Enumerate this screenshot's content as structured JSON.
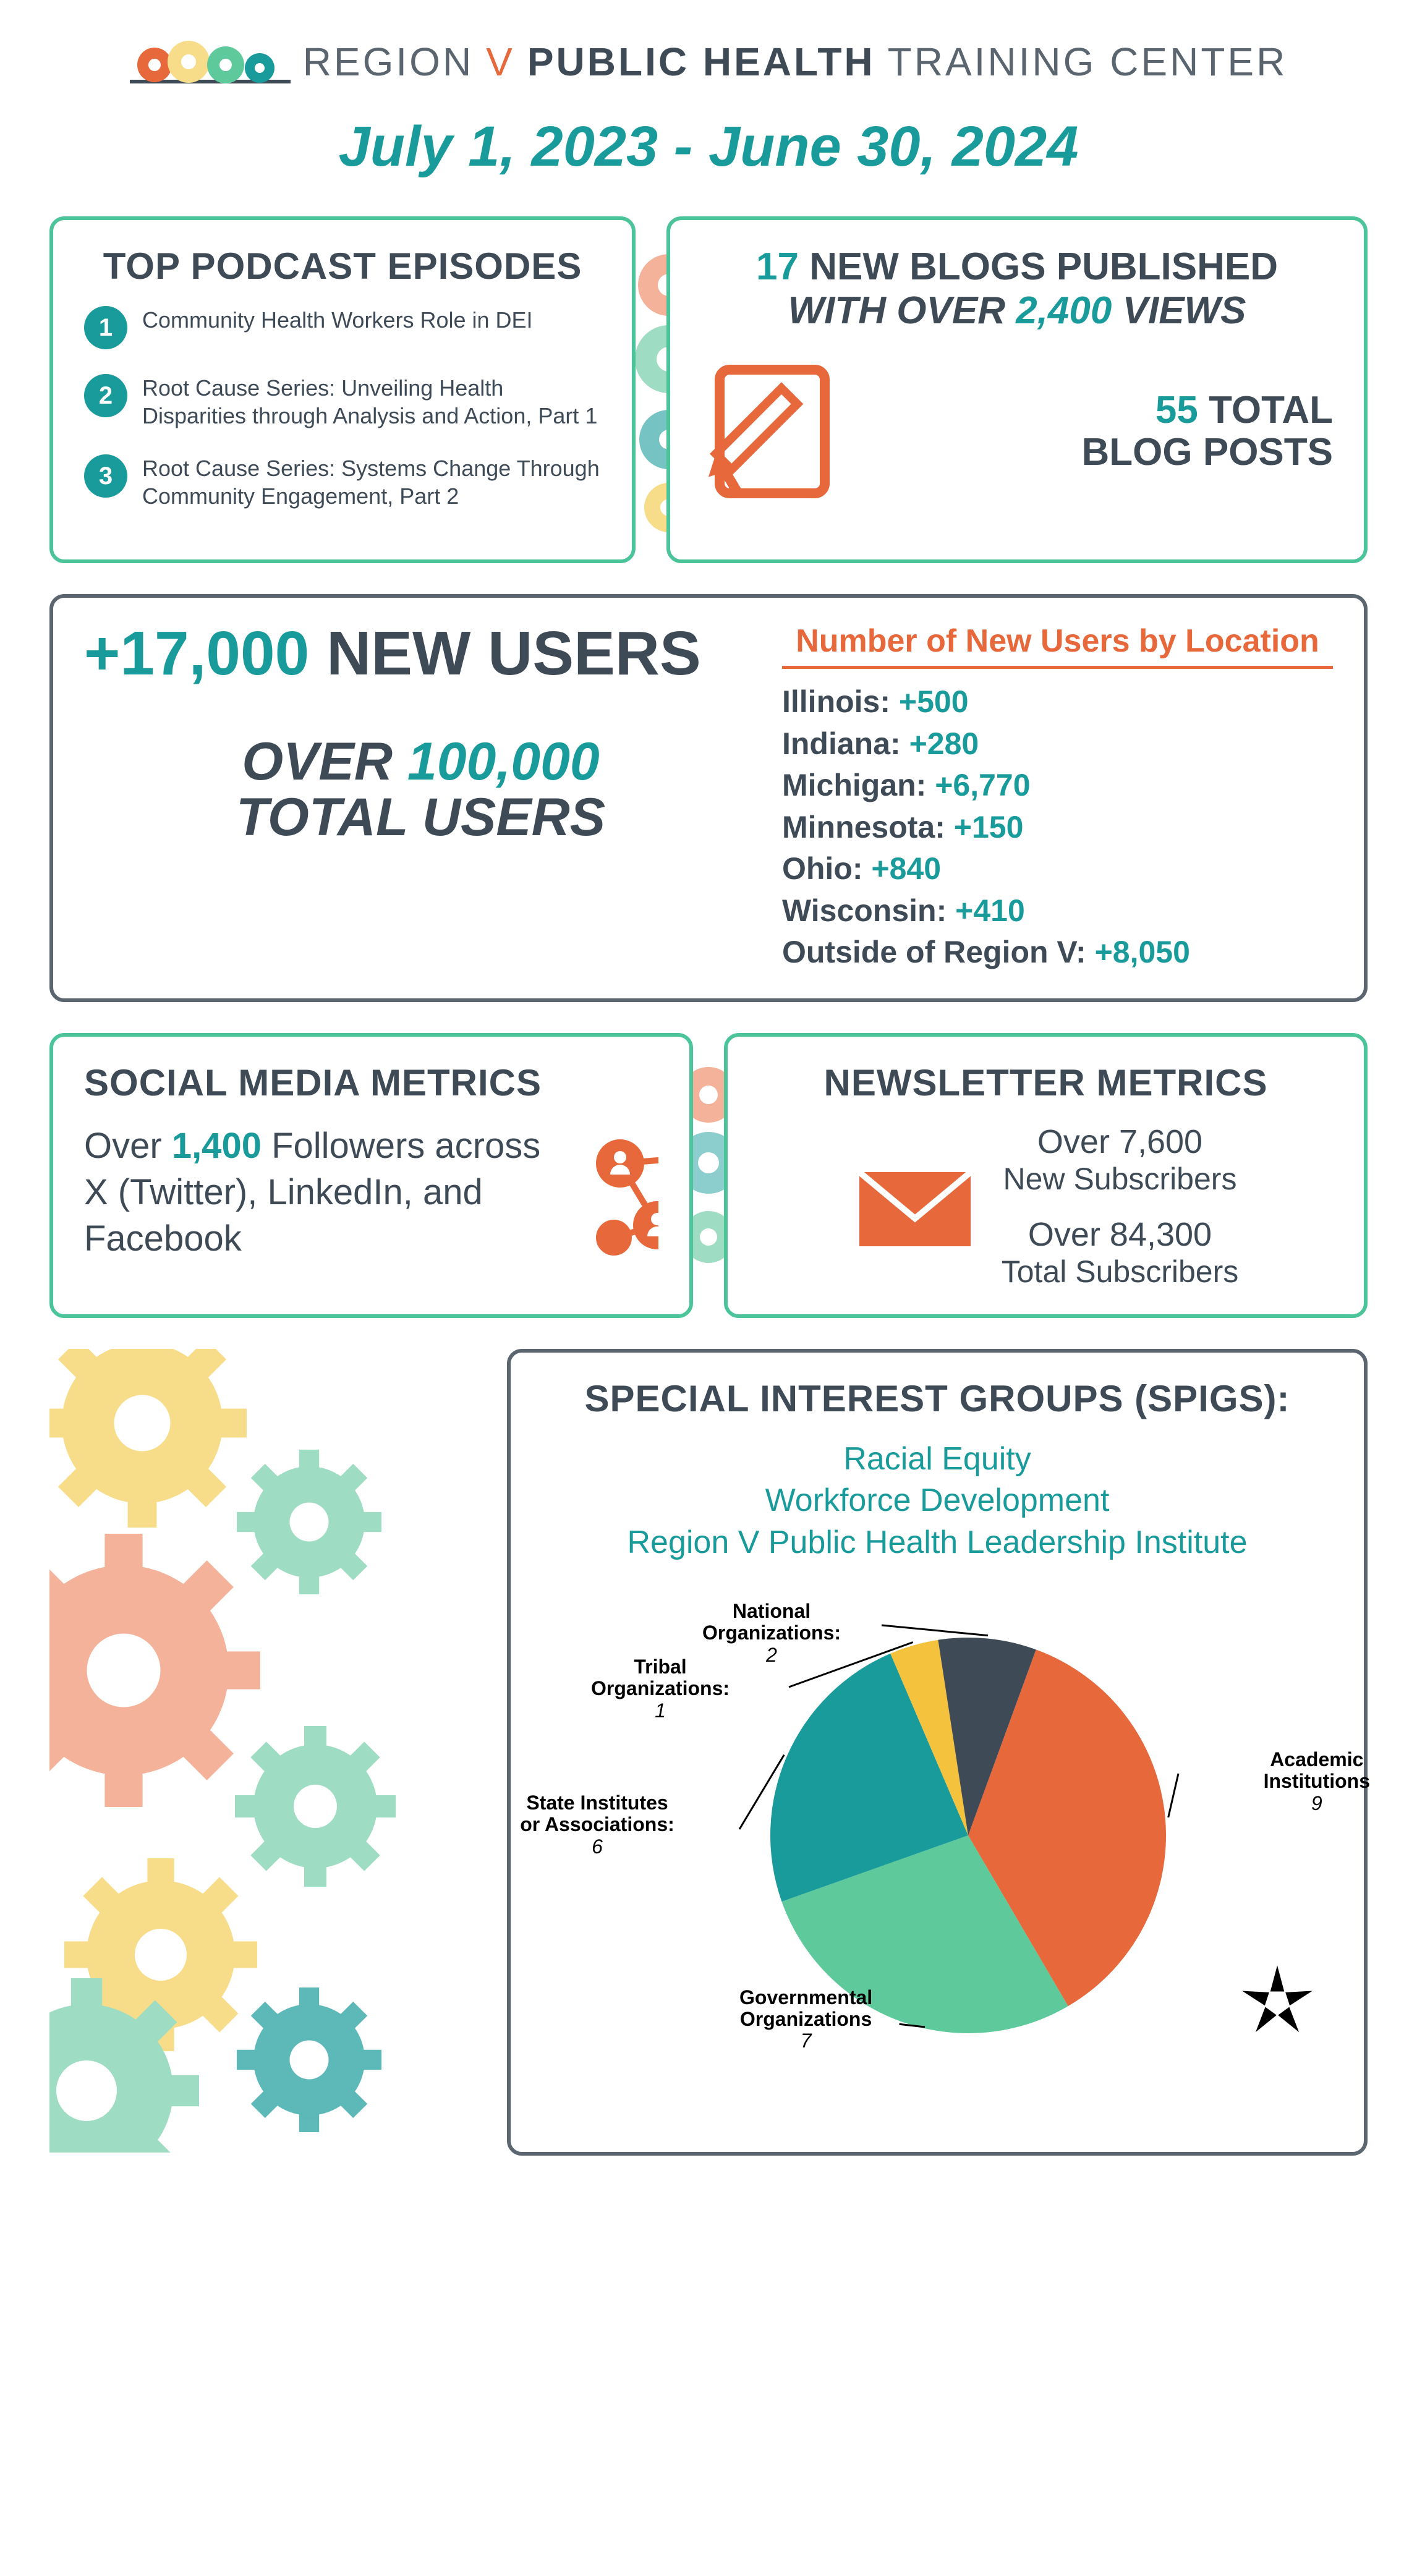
{
  "colors": {
    "teal": "#1a9b9b",
    "orange": "#e7683b",
    "green_border": "#4bc49a",
    "gray_border": "#5a6570",
    "dark_text": "#3e4a56",
    "mint": "#5ec99b",
    "dark_slate": "#3e4a56",
    "yellow": "#f5c23e",
    "peach": "#f5b29a",
    "soft_yellow": "#f7dd8a",
    "soft_mint": "#9edcc4"
  },
  "header": {
    "region": "REGION",
    "v": "V",
    "public_health": "PUBLIC HEALTH",
    "training_center": "TRAINING CENTER"
  },
  "date_range": "July 1, 2023 - June 30, 2024",
  "podcasts": {
    "title": "TOP PODCAST EPISODES",
    "items": [
      "Community Health Workers Role in DEI",
      "Root Cause Series: Unveiling Health Disparities through Analysis and Action, Part 1",
      "Root Cause Series: Systems Change Through Community Engagement, Part 2"
    ]
  },
  "blogs": {
    "new_count": "17",
    "new_label": "NEW BLOGS PUBLISHED",
    "with_label": "WITH OVER",
    "views": "2,400",
    "views_label": "VIEWS",
    "total_count": "55",
    "total_label_1": "TOTAL",
    "total_label_2": "BLOG POSTS"
  },
  "users": {
    "new": "+17,000",
    "new_label": "NEW USERS",
    "over_label": "OVER",
    "total": "100,000",
    "total_label": "TOTAL USERS",
    "loc_title": "Number of New Users by Location",
    "locations": [
      {
        "name": "Illinois:",
        "val": "+500"
      },
      {
        "name": "Indiana:",
        "val": "+280"
      },
      {
        "name": "Michigan:",
        "val": "+6,770"
      },
      {
        "name": "Minnesota:",
        "val": "+150"
      },
      {
        "name": "Ohio:",
        "val": "+840"
      },
      {
        "name": "Wisconsin:",
        "val": "+410"
      },
      {
        "name": "Outside of Region V:",
        "val": "+8,050"
      }
    ]
  },
  "social": {
    "title": "SOCIAL MEDIA METRICS",
    "over": "Over",
    "count": "1,400",
    "text": "Followers across X (Twitter), LinkedIn, and Facebook"
  },
  "newsletter": {
    "title": "NEWSLETTER METRICS",
    "over1": "Over 7,600",
    "label1": "New Subscribers",
    "over2": "Over 84,300",
    "label2": "Total Subscribers"
  },
  "spigs": {
    "title": "SPECIAL INTEREST GROUPS (SPIGS):",
    "items": [
      "Racial Equity",
      "Workforce Development",
      "Region V Public Health Leadership Institute"
    ],
    "pie": {
      "slices": [
        {
          "label": "Academic Institutions",
          "value": 9,
          "color": "#e7683b"
        },
        {
          "label": "Governmental Organizations",
          "value": 7,
          "color": "#5ec99b"
        },
        {
          "label": "State Institutes or Associations:",
          "value": 6,
          "color": "#1a9b9b"
        },
        {
          "label": "Tribal Organizations:",
          "value": 1,
          "color": "#f5c23e"
        },
        {
          "label": "National Organizations:",
          "value": 2,
          "color": "#3e4a56"
        }
      ],
      "radius": 320
    }
  }
}
